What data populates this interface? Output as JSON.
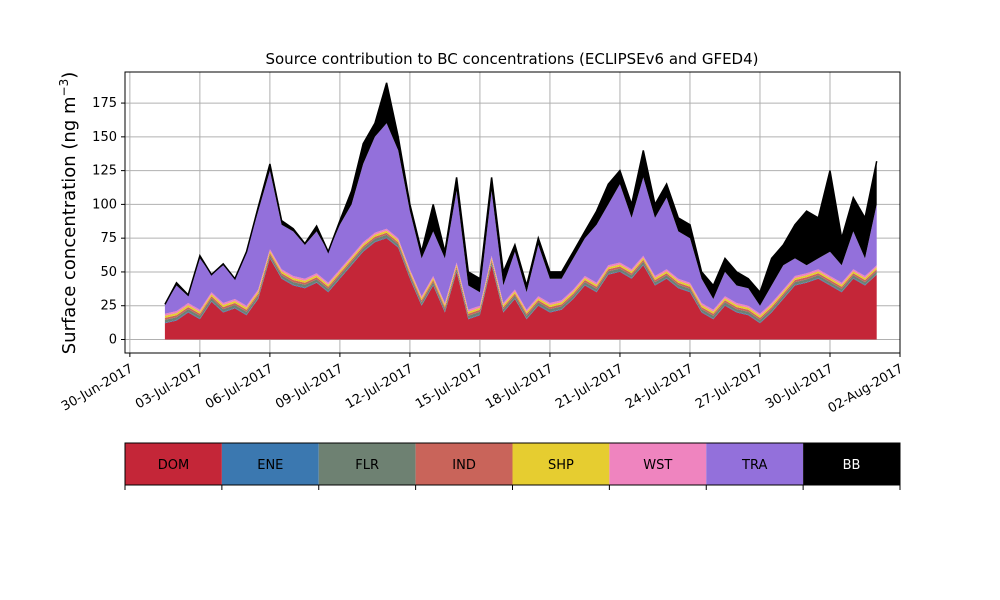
{
  "chart_data": {
    "type": "area",
    "title": "Source contribution to BC concentrations (ECLIPSEv6 and GFED4)",
    "ylabel_main": "Surface concentration (ng m",
    "ylabel_sup": "−3",
    "ylabel_close": ")",
    "xlabel": "",
    "ylim": [
      -10,
      198
    ],
    "xlim": [
      "2017-06-29T19:00",
      "2017-08-02T00:00"
    ],
    "yticks": [
      0,
      25,
      50,
      75,
      100,
      125,
      150,
      175
    ],
    "xticks": [
      {
        "date": "2017-06-30",
        "label": "30-Jun-2017"
      },
      {
        "date": "2017-07-03",
        "label": "03-Jul-2017"
      },
      {
        "date": "2017-07-06",
        "label": "06-Jul-2017"
      },
      {
        "date": "2017-07-09",
        "label": "09-Jul-2017"
      },
      {
        "date": "2017-07-12",
        "label": "12-Jul-2017"
      },
      {
        "date": "2017-07-15",
        "label": "15-Jul-2017"
      },
      {
        "date": "2017-07-18",
        "label": "18-Jul-2017"
      },
      {
        "date": "2017-07-21",
        "label": "21-Jul-2017"
      },
      {
        "date": "2017-07-24",
        "label": "24-Jul-2017"
      },
      {
        "date": "2017-07-27",
        "label": "27-Jul-2017"
      },
      {
        "date": "2017-07-30",
        "label": "30-Jul-2017"
      },
      {
        "date": "2017-08-02",
        "label": "02-Aug-2017"
      }
    ],
    "grid": true,
    "legend_position": "below",
    "stack_order": [
      "DOM",
      "ENE",
      "FLR",
      "IND",
      "SHP",
      "WST",
      "TRA",
      "BB"
    ],
    "series": [
      {
        "name": "DOM",
        "color": "#c42638"
      },
      {
        "name": "ENE",
        "color": "#3b78b0"
      },
      {
        "name": "FLR",
        "color": "#6e8172"
      },
      {
        "name": "IND",
        "color": "#c9645a"
      },
      {
        "name": "SHP",
        "color": "#e6cd30"
      },
      {
        "name": "WST",
        "color": "#ef84bf"
      },
      {
        "name": "TRA",
        "color": "#9370db"
      },
      {
        "name": "BB",
        "color": "#000000"
      }
    ],
    "dom_values": [
      [
        "2017-07-01T12:00",
        12
      ],
      [
        "2017-07-02T00:00",
        14
      ],
      [
        "2017-07-02T12:00",
        20
      ],
      [
        "2017-07-03T00:00",
        15
      ],
      [
        "2017-07-03T12:00",
        28
      ],
      [
        "2017-07-04T00:00",
        20
      ],
      [
        "2017-07-04T12:00",
        23
      ],
      [
        "2017-07-05T00:00",
        18
      ],
      [
        "2017-07-05T12:00",
        30
      ],
      [
        "2017-07-06T00:00",
        60
      ],
      [
        "2017-07-06T12:00",
        45
      ],
      [
        "2017-07-07T00:00",
        40
      ],
      [
        "2017-07-07T12:00",
        38
      ],
      [
        "2017-07-08T00:00",
        42
      ],
      [
        "2017-07-08T12:00",
        35
      ],
      [
        "2017-07-09T00:00",
        45
      ],
      [
        "2017-07-09T12:00",
        55
      ],
      [
        "2017-07-10T00:00",
        65
      ],
      [
        "2017-07-10T12:00",
        72
      ],
      [
        "2017-07-11T00:00",
        75
      ],
      [
        "2017-07-11T12:00",
        68
      ],
      [
        "2017-07-12T00:00",
        45
      ],
      [
        "2017-07-12T12:00",
        25
      ],
      [
        "2017-07-13T00:00",
        40
      ],
      [
        "2017-07-13T12:00",
        20
      ],
      [
        "2017-07-14T00:00",
        50
      ],
      [
        "2017-07-14T12:00",
        15
      ],
      [
        "2017-07-15T00:00",
        18
      ],
      [
        "2017-07-15T12:00",
        55
      ],
      [
        "2017-07-16T00:00",
        20
      ],
      [
        "2017-07-16T12:00",
        30
      ],
      [
        "2017-07-17T00:00",
        15
      ],
      [
        "2017-07-17T12:00",
        25
      ],
      [
        "2017-07-18T00:00",
        20
      ],
      [
        "2017-07-18T12:00",
        22
      ],
      [
        "2017-07-19T00:00",
        30
      ],
      [
        "2017-07-19T12:00",
        40
      ],
      [
        "2017-07-20T00:00",
        35
      ],
      [
        "2017-07-20T12:00",
        48
      ],
      [
        "2017-07-21T00:00",
        50
      ],
      [
        "2017-07-21T12:00",
        45
      ],
      [
        "2017-07-22T00:00",
        55
      ],
      [
        "2017-07-22T12:00",
        40
      ],
      [
        "2017-07-23T00:00",
        45
      ],
      [
        "2017-07-23T12:00",
        38
      ],
      [
        "2017-07-24T00:00",
        35
      ],
      [
        "2017-07-24T12:00",
        20
      ],
      [
        "2017-07-25T00:00",
        15
      ],
      [
        "2017-07-25T12:00",
        25
      ],
      [
        "2017-07-26T00:00",
        20
      ],
      [
        "2017-07-26T12:00",
        18
      ],
      [
        "2017-07-27T00:00",
        12
      ],
      [
        "2017-07-27T12:00",
        20
      ],
      [
        "2017-07-28T00:00",
        30
      ],
      [
        "2017-07-28T12:00",
        40
      ],
      [
        "2017-07-29T00:00",
        42
      ],
      [
        "2017-07-29T12:00",
        45
      ],
      [
        "2017-07-30T00:00",
        40
      ],
      [
        "2017-07-30T12:00",
        35
      ],
      [
        "2017-07-31T00:00",
        45
      ],
      [
        "2017-07-31T12:00",
        40
      ],
      [
        "2017-08-01T00:00",
        48
      ]
    ],
    "tra_top_values": [
      [
        "2017-07-01T12:00",
        26
      ],
      [
        "2017-07-02T00:00",
        40
      ],
      [
        "2017-07-02T12:00",
        32
      ],
      [
        "2017-07-03T00:00",
        60
      ],
      [
        "2017-07-03T12:00",
        48
      ],
      [
        "2017-07-04T00:00",
        55
      ],
      [
        "2017-07-04T12:00",
        45
      ],
      [
        "2017-07-05T00:00",
        65
      ],
      [
        "2017-07-05T12:00",
        95
      ],
      [
        "2017-07-06T00:00",
        125
      ],
      [
        "2017-07-06T12:00",
        85
      ],
      [
        "2017-07-07T00:00",
        80
      ],
      [
        "2017-07-07T12:00",
        70
      ],
      [
        "2017-07-08T00:00",
        80
      ],
      [
        "2017-07-08T12:00",
        65
      ],
      [
        "2017-07-09T00:00",
        85
      ],
      [
        "2017-07-09T12:00",
        100
      ],
      [
        "2017-07-10T00:00",
        130
      ],
      [
        "2017-07-10T12:00",
        150
      ],
      [
        "2017-07-11T00:00",
        160
      ],
      [
        "2017-07-11T12:00",
        140
      ],
      [
        "2017-07-12T00:00",
        95
      ],
      [
        "2017-07-12T12:00",
        60
      ],
      [
        "2017-07-13T00:00",
        80
      ],
      [
        "2017-07-13T12:00",
        60
      ],
      [
        "2017-07-14T00:00",
        110
      ],
      [
        "2017-07-14T12:00",
        40
      ],
      [
        "2017-07-15T00:00",
        35
      ],
      [
        "2017-07-15T12:00",
        110
      ],
      [
        "2017-07-16T00:00",
        40
      ],
      [
        "2017-07-16T12:00",
        65
      ],
      [
        "2017-07-17T00:00",
        35
      ],
      [
        "2017-07-17T12:00",
        70
      ],
      [
        "2017-07-18T00:00",
        45
      ],
      [
        "2017-07-18T12:00",
        45
      ],
      [
        "2017-07-19T00:00",
        60
      ],
      [
        "2017-07-19T12:00",
        75
      ],
      [
        "2017-07-20T00:00",
        85
      ],
      [
        "2017-07-20T12:00",
        100
      ],
      [
        "2017-07-21T00:00",
        115
      ],
      [
        "2017-07-21T12:00",
        90
      ],
      [
        "2017-07-22T00:00",
        120
      ],
      [
        "2017-07-22T12:00",
        90
      ],
      [
        "2017-07-23T00:00",
        105
      ],
      [
        "2017-07-23T12:00",
        80
      ],
      [
        "2017-07-24T00:00",
        75
      ],
      [
        "2017-07-24T12:00",
        45
      ],
      [
        "2017-07-25T00:00",
        30
      ],
      [
        "2017-07-25T12:00",
        50
      ],
      [
        "2017-07-26T00:00",
        40
      ],
      [
        "2017-07-26T12:00",
        38
      ],
      [
        "2017-07-27T00:00",
        25
      ],
      [
        "2017-07-27T12:00",
        40
      ],
      [
        "2017-07-28T00:00",
        55
      ],
      [
        "2017-07-28T12:00",
        60
      ],
      [
        "2017-07-29T00:00",
        55
      ],
      [
        "2017-07-29T12:00",
        60
      ],
      [
        "2017-07-30T00:00",
        65
      ],
      [
        "2017-07-30T12:00",
        55
      ],
      [
        "2017-07-31T00:00",
        80
      ],
      [
        "2017-07-31T12:00",
        60
      ],
      [
        "2017-08-01T00:00",
        100
      ]
    ],
    "total_values": [
      [
        "2017-07-01T12:00",
        26
      ],
      [
        "2017-07-02T00:00",
        42
      ],
      [
        "2017-07-02T12:00",
        33
      ],
      [
        "2017-07-03T00:00",
        62
      ],
      [
        "2017-07-03T12:00",
        48
      ],
      [
        "2017-07-04T00:00",
        56
      ],
      [
        "2017-07-04T12:00",
        45
      ],
      [
        "2017-07-05T00:00",
        65
      ],
      [
        "2017-07-05T12:00",
        98
      ],
      [
        "2017-07-06T00:00",
        130
      ],
      [
        "2017-07-06T12:00",
        88
      ],
      [
        "2017-07-07T00:00",
        82
      ],
      [
        "2017-07-07T12:00",
        71
      ],
      [
        "2017-07-08T00:00",
        84
      ],
      [
        "2017-07-08T12:00",
        65
      ],
      [
        "2017-07-09T00:00",
        88
      ],
      [
        "2017-07-09T12:00",
        110
      ],
      [
        "2017-07-10T00:00",
        145
      ],
      [
        "2017-07-10T12:00",
        160
      ],
      [
        "2017-07-11T00:00",
        190
      ],
      [
        "2017-07-11T12:00",
        150
      ],
      [
        "2017-07-12T00:00",
        100
      ],
      [
        "2017-07-12T12:00",
        65
      ],
      [
        "2017-07-13T00:00",
        100
      ],
      [
        "2017-07-13T12:00",
        65
      ],
      [
        "2017-07-14T00:00",
        120
      ],
      [
        "2017-07-14T12:00",
        50
      ],
      [
        "2017-07-15T00:00",
        45
      ],
      [
        "2017-07-15T12:00",
        120
      ],
      [
        "2017-07-16T00:00",
        50
      ],
      [
        "2017-07-16T12:00",
        70
      ],
      [
        "2017-07-17T00:00",
        40
      ],
      [
        "2017-07-17T12:00",
        75
      ],
      [
        "2017-07-18T00:00",
        50
      ],
      [
        "2017-07-18T12:00",
        50
      ],
      [
        "2017-07-19T00:00",
        65
      ],
      [
        "2017-07-19T12:00",
        80
      ],
      [
        "2017-07-20T00:00",
        95
      ],
      [
        "2017-07-20T12:00",
        115
      ],
      [
        "2017-07-21T00:00",
        125
      ],
      [
        "2017-07-21T12:00",
        100
      ],
      [
        "2017-07-22T00:00",
        140
      ],
      [
        "2017-07-22T12:00",
        100
      ],
      [
        "2017-07-23T00:00",
        115
      ],
      [
        "2017-07-23T12:00",
        90
      ],
      [
        "2017-07-24T00:00",
        85
      ],
      [
        "2017-07-24T12:00",
        50
      ],
      [
        "2017-07-25T00:00",
        40
      ],
      [
        "2017-07-25T12:00",
        60
      ],
      [
        "2017-07-26T00:00",
        50
      ],
      [
        "2017-07-26T12:00",
        45
      ],
      [
        "2017-07-27T00:00",
        35
      ],
      [
        "2017-07-27T12:00",
        60
      ],
      [
        "2017-07-28T00:00",
        70
      ],
      [
        "2017-07-28T12:00",
        85
      ],
      [
        "2017-07-29T00:00",
        95
      ],
      [
        "2017-07-29T12:00",
        90
      ],
      [
        "2017-07-30T00:00",
        125
      ],
      [
        "2017-07-30T12:00",
        75
      ],
      [
        "2017-07-31T00:00",
        105
      ],
      [
        "2017-07-31T12:00",
        90
      ],
      [
        "2017-08-01T00:00",
        132
      ]
    ]
  }
}
